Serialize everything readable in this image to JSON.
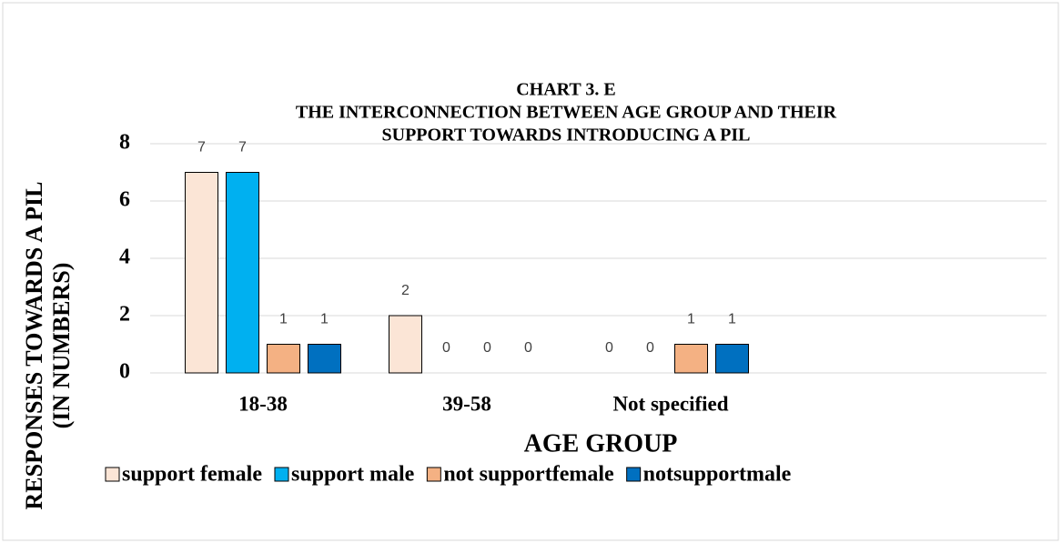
{
  "chart_data": {
    "type": "bar",
    "title": [
      "CHART 3. E",
      "THE INTERCONNECTION BETWEEN AGE GROUP AND THEIR",
      "SUPPORT TOWARDS INTRODUCING A PIL"
    ],
    "x_label": "AGE GROUP",
    "y_label": [
      "RESPONSES TOWARDS A PIL",
      "(IN NUMBERS)"
    ],
    "categories": [
      "18-38",
      "39-58",
      "Not specified"
    ],
    "series": [
      {
        "name": "support female",
        "color": "#fbe5d6",
        "values": [
          7,
          2,
          0
        ]
      },
      {
        "name": "support male",
        "color": "#00b0f0",
        "values": [
          7,
          0,
          0
        ]
      },
      {
        "name": "not supportfemale",
        "color": "#f4b183",
        "values": [
          1,
          0,
          1
        ]
      },
      {
        "name": "notsupportmale",
        "color": "#0070c0",
        "values": [
          1,
          0,
          1
        ]
      }
    ],
    "ylim": [
      0,
      8
    ],
    "yticks": [
      0,
      2,
      4,
      6,
      8
    ],
    "grid": true,
    "legend": "bottom"
  }
}
